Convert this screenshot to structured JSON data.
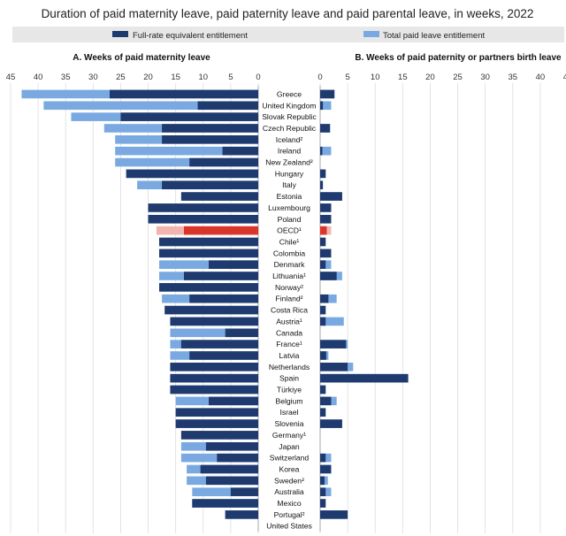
{
  "chart_data": {
    "type": "bar",
    "title": "Duration of paid maternity leave, paid paternity leave and paid parental leave, in weeks, 2022",
    "legend": [
      {
        "name": "Full-rate equivalent entitlement",
        "color": "#1f3a6e"
      },
      {
        "name": "Total paid leave entitlement",
        "color": "#79a9e0"
      }
    ],
    "highlight_color": "#d9352a",
    "highlight_light_color": "#f2b4ae",
    "countries": [
      "Greece",
      "United Kingdom",
      "Slovak Republic",
      "Czech Republic",
      "Iceland²",
      "Ireland",
      "New Zealand²",
      "Hungary",
      "Italy",
      "Estonia",
      "Luxembourg",
      "Poland",
      "OECD¹",
      "Chile¹",
      "Colombia",
      "Denmark",
      "Lithuania¹",
      "Norway²",
      "Finland²",
      "Costa Rica",
      "Austria¹",
      "Canada",
      "France¹",
      "Latvia",
      "Netherlands",
      "Spain",
      "Türkiye",
      "Belgium",
      "Israel",
      "Slovenia",
      "Germany¹",
      "Japan",
      "Switzerland",
      "Korea",
      "Sweden²",
      "Australia",
      "Mexico",
      "Portugal²",
      "United States"
    ],
    "highlight": "OECD¹",
    "panels": [
      {
        "title": "A. Weeks of paid maternity leave",
        "direction": "left",
        "xlim": [
          0,
          45
        ],
        "ticks": [
          45,
          40,
          35,
          30,
          25,
          20,
          15,
          10,
          5,
          0
        ],
        "series": [
          {
            "name": "Total paid leave entitlement",
            "values": [
              43,
              39,
              34,
              28,
              26,
              26,
              26,
              24,
              22,
              14,
              20,
              20,
              18.5,
              18,
              18,
              18,
              18,
              18,
              17.5,
              17,
              16,
              16,
              16,
              16,
              16,
              16,
              16,
              15,
              15,
              15,
              14,
              14,
              14,
              13,
              13,
              12,
              12,
              6,
              0
            ]
          },
          {
            "name": "Full-rate equivalent entitlement",
            "values": [
              27,
              11,
              25,
              17.5,
              17.5,
              6.5,
              12.5,
              24,
              17.5,
              14,
              20,
              20,
              13.5,
              18,
              18,
              9,
              13.5,
              18,
              12.5,
              17,
              16,
              6,
              14,
              12.5,
              16,
              16,
              16,
              9,
              15,
              15,
              14,
              9.5,
              7.5,
              10.5,
              9.5,
              5,
              12,
              6,
              0
            ]
          }
        ]
      },
      {
        "title": "B. Weeks of paid paternity or partners birth leave",
        "direction": "right",
        "xlim": [
          0,
          45
        ],
        "ticks": [
          0,
          5,
          10,
          15,
          20,
          25,
          30,
          35,
          40,
          45
        ],
        "series": [
          {
            "name": "Total paid leave entitlement",
            "values": [
              2.6,
              2,
              0,
              1.8,
              0,
              2,
              0,
              1,
              0.5,
              4,
              2,
              2,
              2,
              1,
              2,
              2,
              4,
              0,
              3,
              1,
              4.3,
              0,
              5,
              1.5,
              6,
              16,
              1,
              3,
              1,
              4,
              0,
              0,
              2,
              2,
              1.4,
              2,
              1,
              5,
              0
            ]
          },
          {
            "name": "Full-rate equivalent entitlement",
            "values": [
              2.6,
              0.5,
              0,
              1.8,
              0,
              0.4,
              0,
              1,
              0.5,
              4,
              2,
              2,
              1.2,
              1,
              2,
              1,
              3,
              0,
              1.5,
              1,
              1,
              0,
              4.7,
              1.1,
              5,
              16,
              1,
              2,
              1,
              4,
              0,
              0,
              1,
              2,
              0.8,
              1,
              1,
              5,
              0
            ]
          }
        ]
      }
    ]
  }
}
